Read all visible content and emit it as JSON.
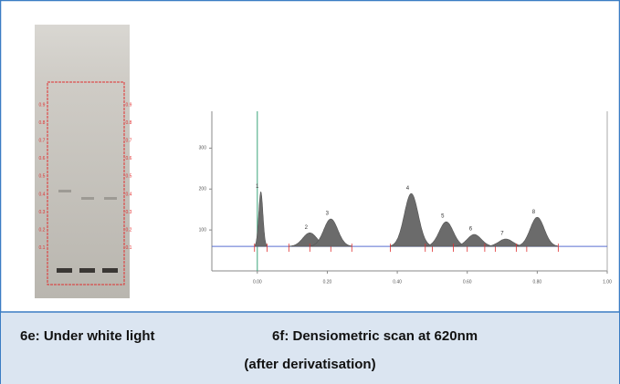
{
  "plate": {
    "rf_labels": [
      "0.9",
      "0.8",
      "0.7",
      "0.6",
      "0.5",
      "0.4",
      "0.3",
      "0.2",
      "0.1"
    ]
  },
  "scan": {
    "xlim": [
      -0.13,
      1.0
    ],
    "ylim": [
      0,
      390
    ],
    "xticks": [
      {
        "value": 0,
        "label": "0.00"
      },
      {
        "value": 0.2,
        "label": "0.20"
      },
      {
        "value": 0.4,
        "label": "0.40"
      },
      {
        "value": 0.6,
        "label": "0.60"
      },
      {
        "value": 0.8,
        "label": "0.80"
      },
      {
        "value": 1,
        "label": "1.00"
      }
    ],
    "yticks": [
      100,
      200,
      300
    ],
    "baseline": 60,
    "peaks": [
      {
        "label": "1",
        "x": 0.01,
        "height": 193
      },
      {
        "label": "2",
        "x": 0.15,
        "height": 93
      },
      {
        "label": "3",
        "x": 0.21,
        "height": 127
      },
      {
        "label": "4",
        "x": 0.44,
        "height": 189
      },
      {
        "label": "5",
        "x": 0.54,
        "height": 120
      },
      {
        "label": "6",
        "x": 0.62,
        "height": 89
      },
      {
        "label": "7",
        "x": 0.71,
        "height": 78
      },
      {
        "label": "8",
        "x": 0.8,
        "height": 131
      }
    ]
  },
  "caption": {
    "left": "6e: Under white light",
    "right": "6f: Densiometric scan at 620nm",
    "line2": "(after derivatisation)"
  }
}
